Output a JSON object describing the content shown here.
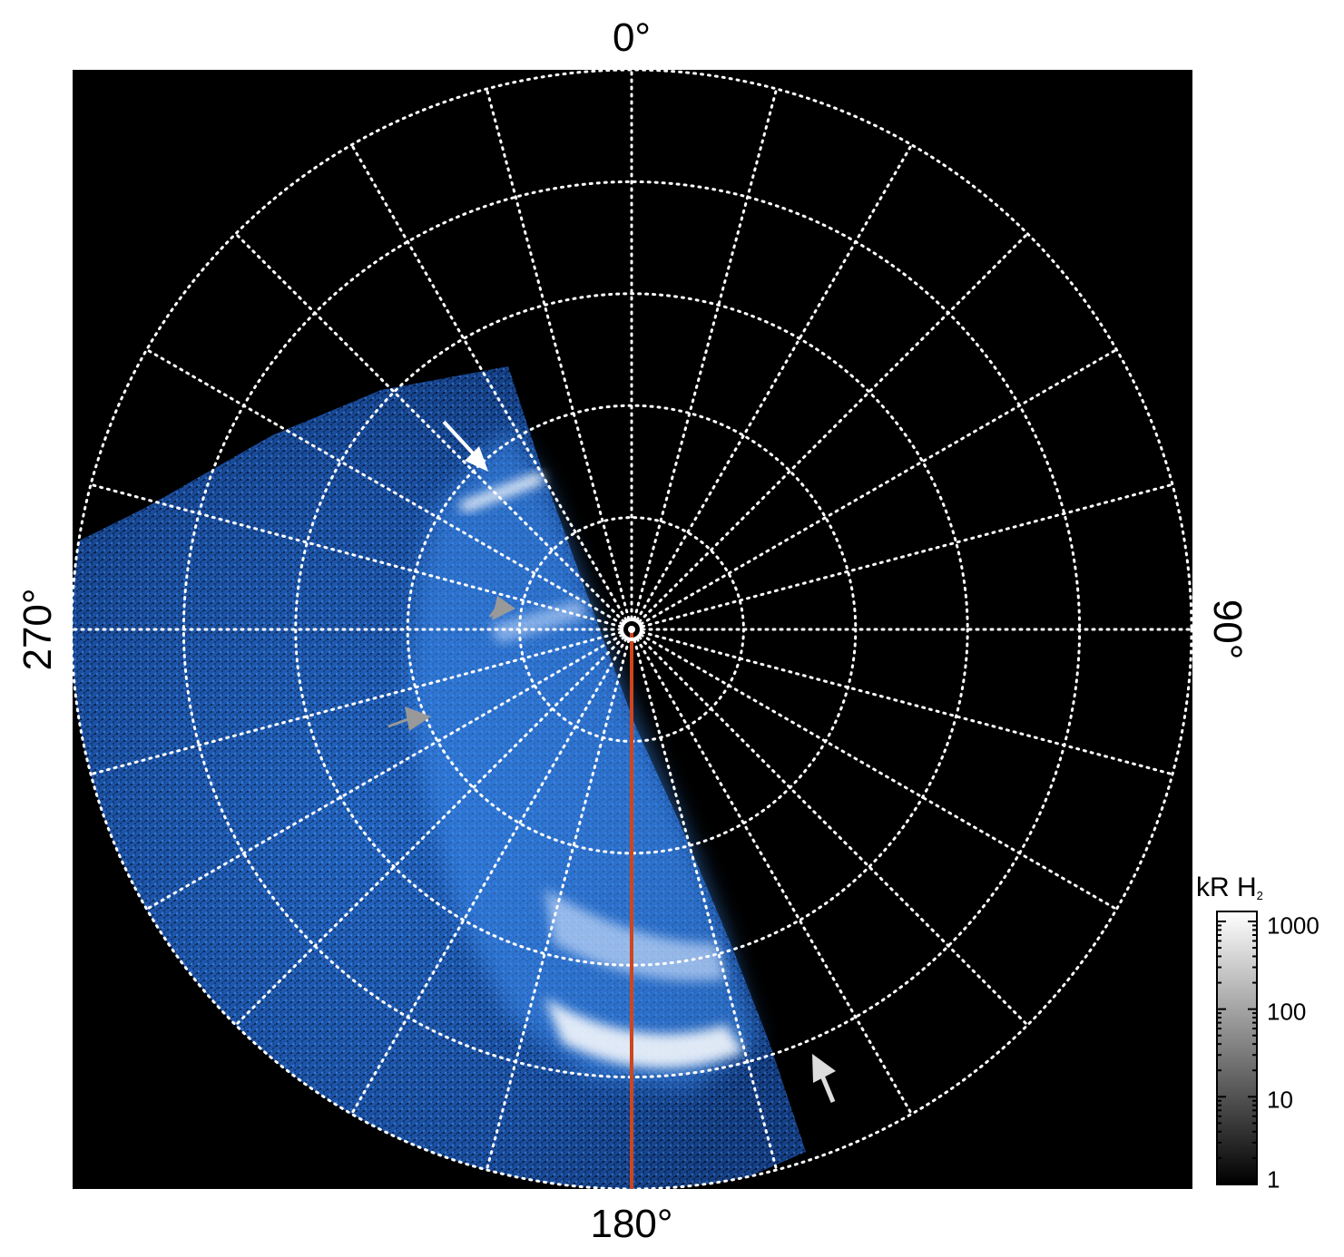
{
  "axis_labels": {
    "top": "0°",
    "right": "90°",
    "bottom": "180°",
    "left": "270°"
  },
  "colorbar": {
    "title_main": "kR H",
    "title_sub": "2",
    "ticks": [
      "1000",
      "100",
      "10",
      "1"
    ],
    "tick_values": [
      1000,
      100,
      10,
      1
    ],
    "scale": "log"
  },
  "colors": {
    "background": "#000000",
    "grid": "#ffffff",
    "emission_low": "#0a3a8a",
    "emission_mid": "#2d7de6",
    "emission_high": "#ffffff",
    "meridian_line": "#d0451b",
    "arrow_white": "#ffffff",
    "arrow_gray": "#999999",
    "arrow_light": "#dddddd"
  },
  "icons": {
    "pole_marker": "bullseye-icon",
    "arrows": [
      "arrow-white-icon",
      "arrow-gray-icon",
      "arrow-gray-icon",
      "arrow-light-icon"
    ]
  },
  "polar_grid": {
    "rings": 5,
    "meridians": 24
  }
}
